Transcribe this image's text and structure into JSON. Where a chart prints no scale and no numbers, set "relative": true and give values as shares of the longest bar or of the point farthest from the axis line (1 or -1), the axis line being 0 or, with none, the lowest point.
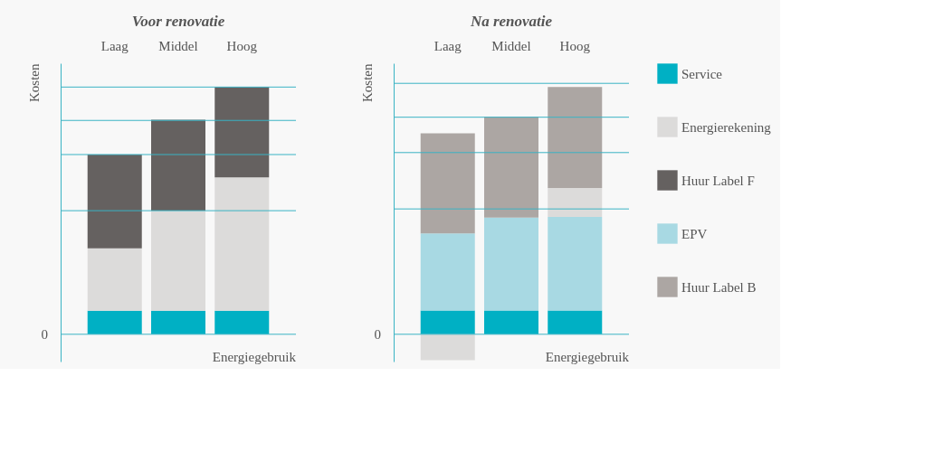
{
  "chart_data": [
    {
      "type": "bar",
      "title": "Voor renovatie",
      "xlabel": "Energiegebruik",
      "ylabel": "Kosten",
      "relative": true,
      "stacked": true,
      "categories": [
        "Laag",
        "Middel",
        "Hoog"
      ],
      "ref_lines": [
        {
          "axis": "y",
          "value": 0,
          "label": "0",
          "color": "#3ab3c4"
        },
        {
          "axis": "y",
          "value": 0.5,
          "color": "#3ab3c4"
        },
        {
          "axis": "y",
          "value": 0.727,
          "color": "#3ab3c4"
        },
        {
          "axis": "y",
          "value": 0.865,
          "color": "#3ab3c4"
        },
        {
          "axis": "y",
          "value": 1.0,
          "color": "#3ab3c4"
        }
      ],
      "series": [
        {
          "name": "Service",
          "color": "#00b0c4",
          "values": [
            0.095,
            0.095,
            0.095
          ]
        },
        {
          "name": "Energierekening",
          "color": "#dcdbda",
          "values": [
            0.253,
            0.405,
            0.54
          ]
        },
        {
          "name": "Huur Label F",
          "color": "#656160",
          "values": [
            0.379,
            0.368,
            0.365
          ]
        }
      ],
      "legend": "right"
    },
    {
      "type": "bar",
      "title": "Na renovatie",
      "xlabel": "Energiegebruik",
      "ylabel": "Kosten",
      "relative": true,
      "stacked": true,
      "categories": [
        "Laag",
        "Middel",
        "Hoog"
      ],
      "ref_lines": [
        {
          "axis": "y",
          "value": 0,
          "label": "0",
          "color": "#3ab3c4"
        },
        {
          "axis": "y",
          "value": 0.507,
          "color": "#3ab3c4"
        },
        {
          "axis": "y",
          "value": 0.735,
          "color": "#3ab3c4"
        },
        {
          "axis": "y",
          "value": 0.878,
          "color": "#3ab3c4"
        },
        {
          "axis": "y",
          "value": 1.015,
          "color": "#3ab3c4"
        }
      ],
      "series": [
        {
          "name": "Service",
          "color": "#00b0c4",
          "values": [
            0.096,
            0.096,
            0.096
          ]
        },
        {
          "name": "EPV",
          "color": "#a8d9e3",
          "values": [
            0.312,
            0.376,
            0.379
          ]
        },
        {
          "name": "Energierekening",
          "color": "#dcdbda",
          "values": [
            -0.105,
            null,
            0.117
          ]
        },
        {
          "name": "Huur Label B",
          "color": "#aca6a3",
          "values": [
            0.405,
            0.408,
            0.408
          ]
        }
      ],
      "legend": "right"
    }
  ]
}
